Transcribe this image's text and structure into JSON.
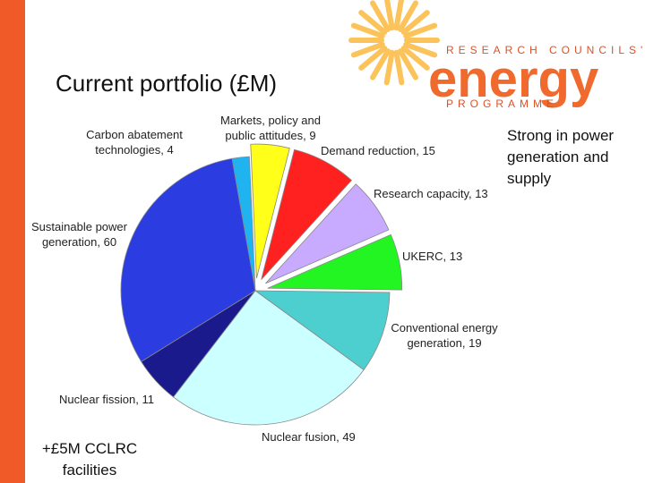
{
  "logo": {
    "top": "RESEARCH COUNCILS'",
    "main": "energy",
    "bottom": "PROGRAMME"
  },
  "side_note": "Strong in power generation and supply",
  "footnote": "+£5M CCLRC facilities",
  "chart_data": {
    "type": "pie",
    "title": "Current portfolio (£M)",
    "categories": [
      "Carbon abatement technologies, 4",
      "Markets, policy and public attitudes, 9",
      "Demand reduction, 15",
      "Research capacity, 13",
      "UKERC, 13",
      "Conventional energy generation, 19",
      "Nuclear fusion, 49",
      "Nuclear fission, 11",
      "Sustainable power generation, 60"
    ],
    "values": [
      4,
      9,
      15,
      13,
      13,
      19,
      49,
      11,
      60
    ],
    "colors": [
      "#1fb4f0",
      "#ffff1a",
      "#ff2020",
      "#c8aaff",
      "#22f522",
      "#4ecfcf",
      "#ccffff",
      "#1a1a8c",
      "#2b3de0"
    ],
    "explode": [
      false,
      true,
      true,
      true,
      true,
      false,
      false,
      false,
      false
    ]
  }
}
